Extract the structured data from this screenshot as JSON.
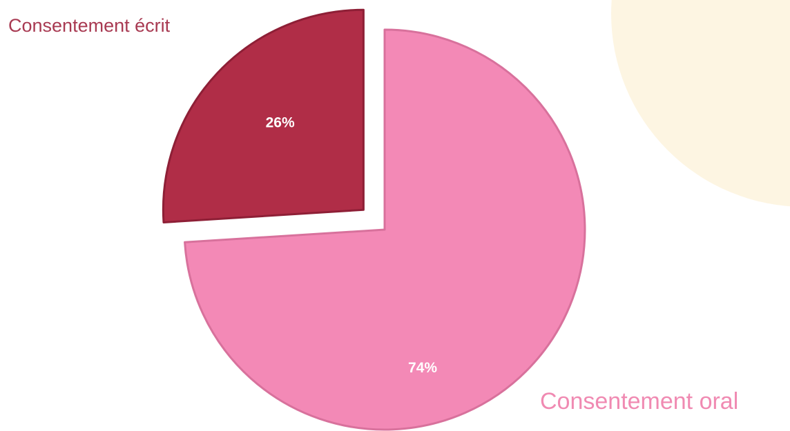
{
  "chart_data": {
    "type": "pie",
    "exploded": true,
    "slices": [
      {
        "label": "Consentement oral",
        "value": 74,
        "value_label": "74%",
        "color": "#f389b6",
        "edge_color": "#d8719c",
        "label_color": "#f08ab2"
      },
      {
        "label": "Consentement écrit",
        "value": 26,
        "value_label": "26%",
        "color": "#b02d47",
        "edge_color": "#8e1f36",
        "label_color": "#a83a52"
      }
    ]
  },
  "colors": {
    "background": "#ffffff",
    "decorative_blob": "#fdf5e2"
  }
}
